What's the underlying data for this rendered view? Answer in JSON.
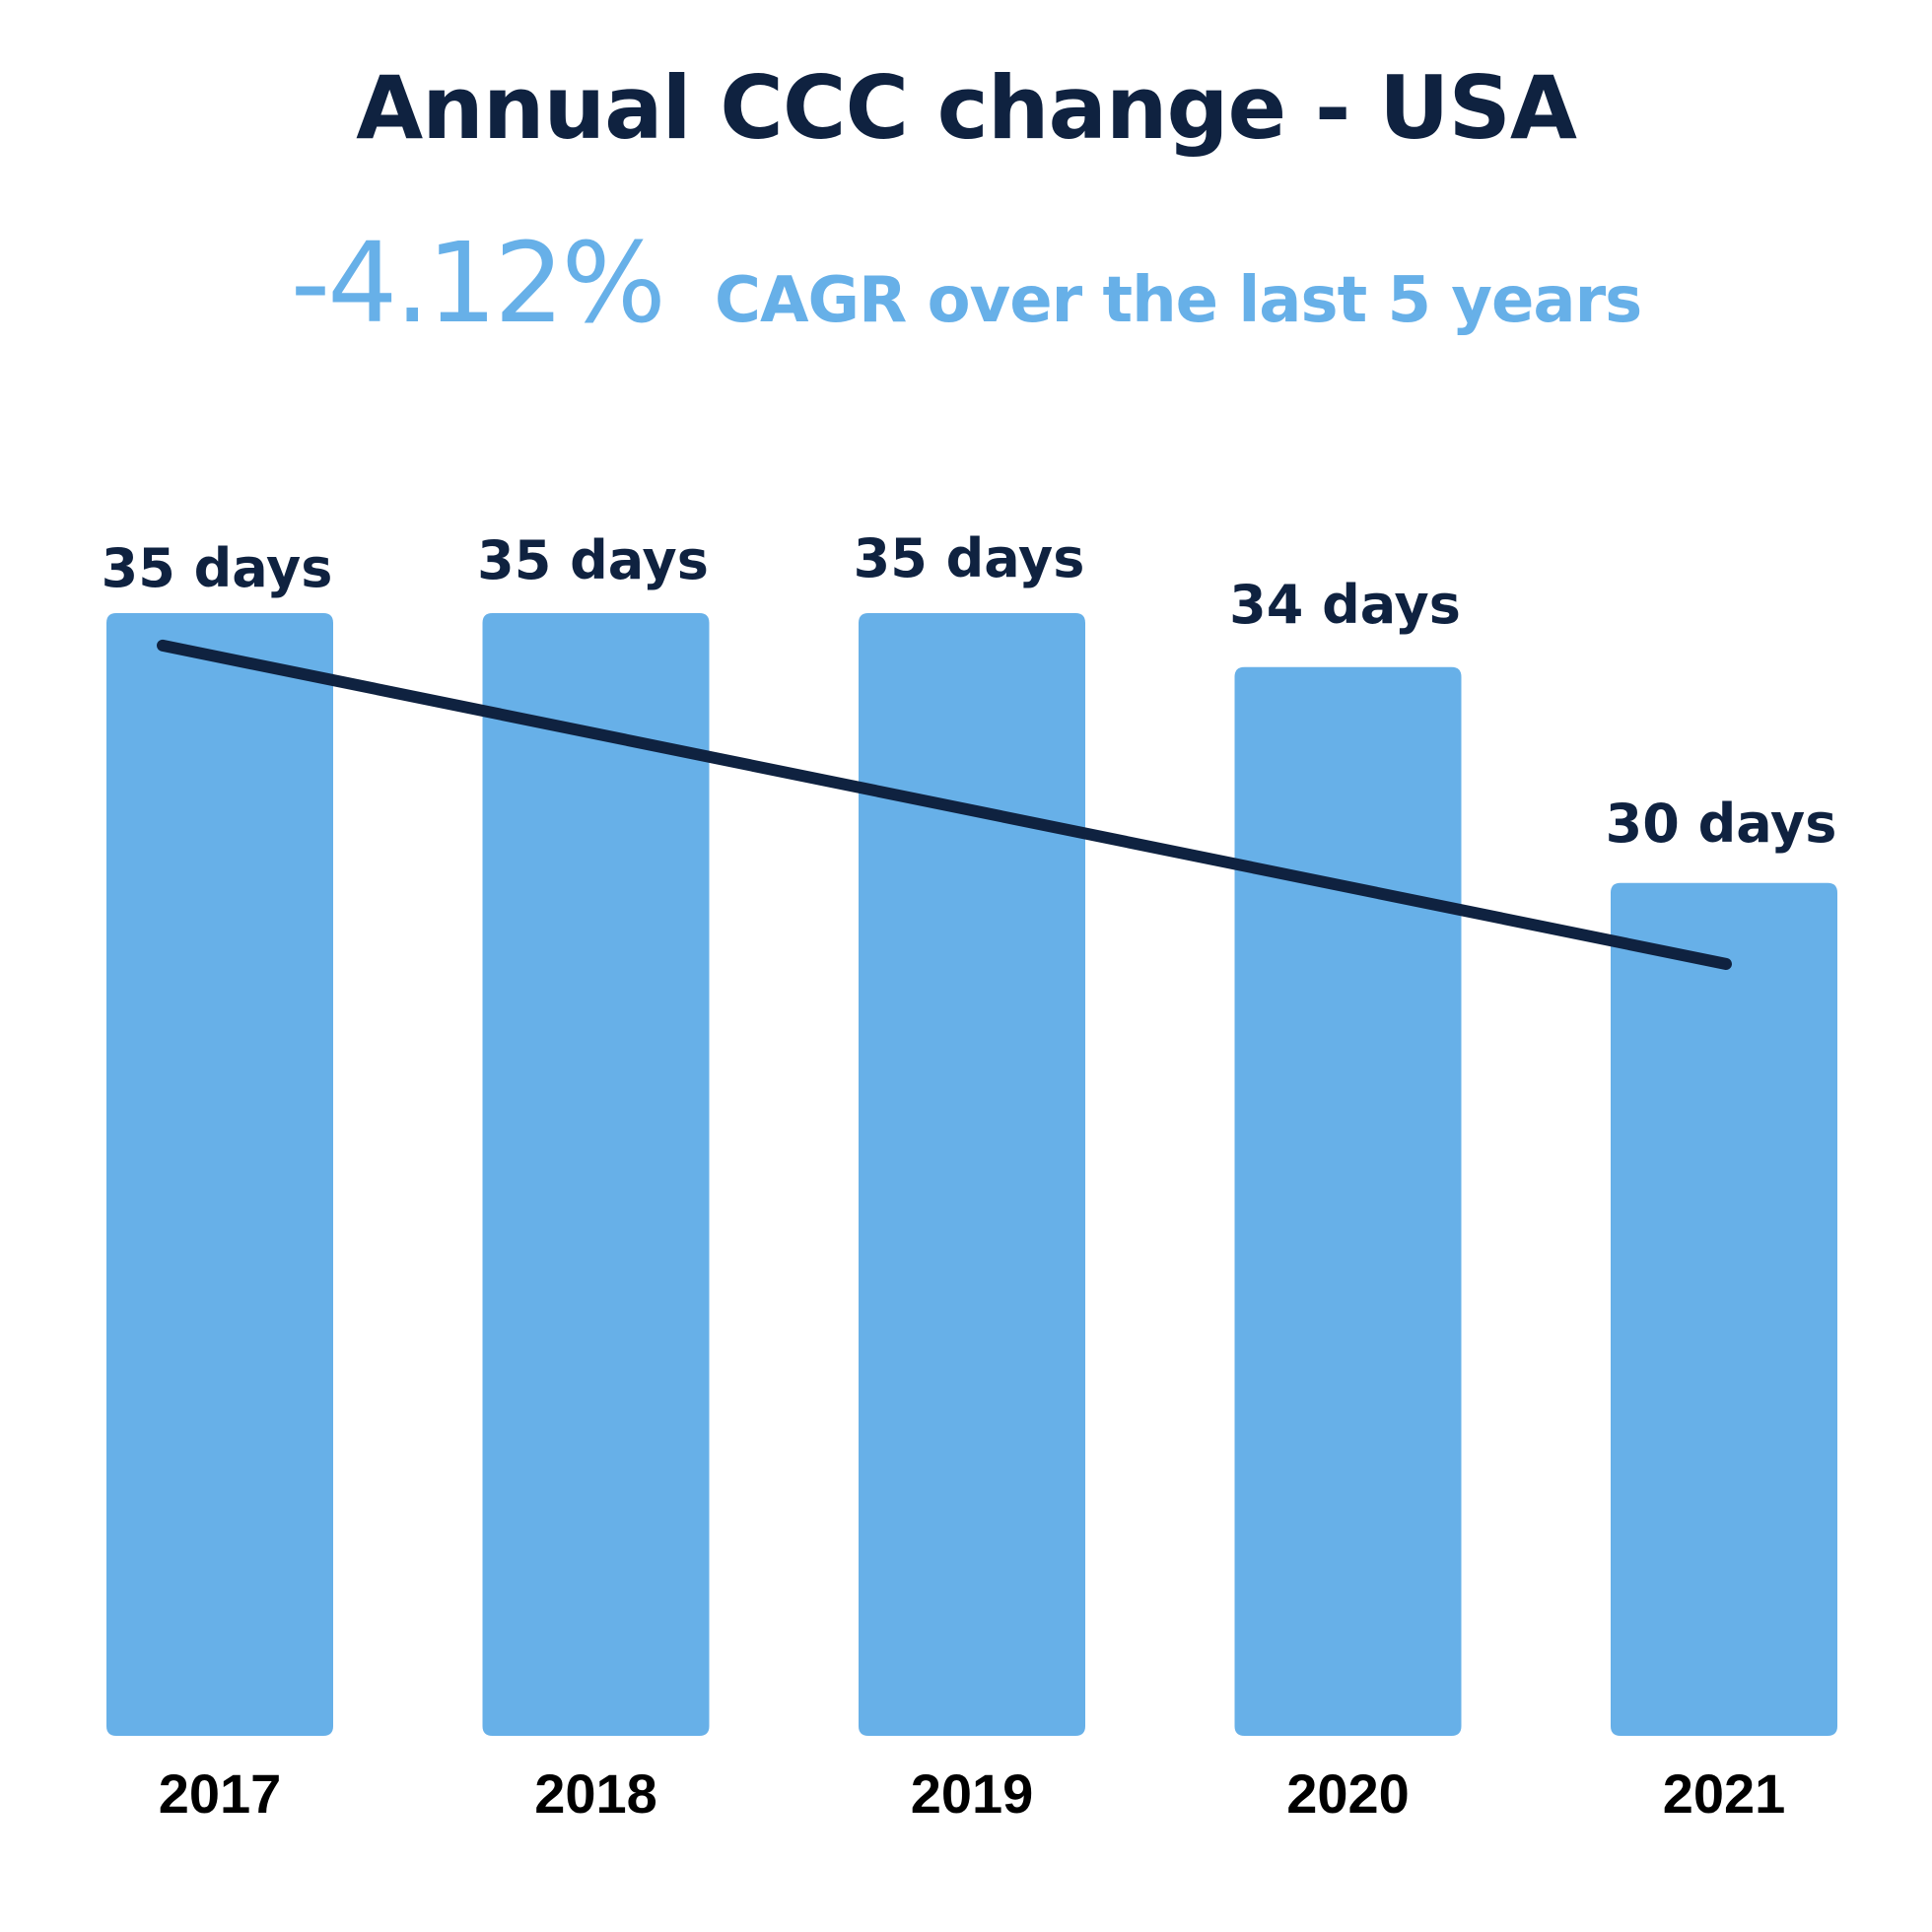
{
  "header": {
    "title": "Annual CCC change - USA",
    "cagr_value": "-4.12%",
    "cagr_caption": "CAGR over the last 5 years"
  },
  "colors": {
    "bar": "#67b0e8",
    "trend_line": "#0f2240",
    "title": "#0f2240",
    "accent": "#67b0e8",
    "bar_label": "#0f2240",
    "x_label": "#000000"
  },
  "chart_data": {
    "type": "bar",
    "title": "Annual CCC change - USA",
    "subtitle": "-4.12% CAGR over the last 5 years",
    "xlabel": "",
    "ylabel": "",
    "categories": [
      "2017",
      "2018",
      "2019",
      "2020",
      "2021"
    ],
    "values": [
      35,
      35,
      35,
      34,
      30
    ],
    "unit": "days",
    "data_labels": [
      "35 days",
      "35 days",
      "35 days",
      "34 days",
      "30 days"
    ],
    "ylim": [
      14.2,
      35
    ],
    "grid": false,
    "legend": "none",
    "trend_line": {
      "type": "line",
      "from_category": "2017",
      "to_category": "2021",
      "values": [
        34.4,
        28.5
      ]
    }
  }
}
